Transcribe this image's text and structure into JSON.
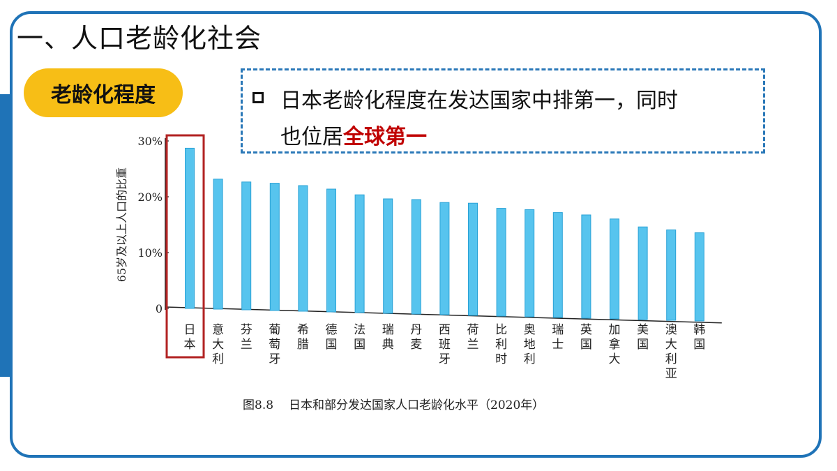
{
  "slide": {
    "title": "一、人口老龄化社会",
    "badge": "老龄化程度",
    "callout": {
      "line1": "日本老龄化程度在发达国家中排第一，同时",
      "line2_prefix": "也位居",
      "line2_highlight": "全球第一"
    },
    "caption": {
      "figure_number": "图8.8",
      "text": "日本和部分发达国家人口老龄化水平（2020年）"
    }
  },
  "colors": {
    "frame": "#1f73b7",
    "badge": "#f7be16",
    "highlight": "#c00000",
    "bar": "#57c4ee",
    "bar_edge": "#2aa2d6",
    "japan_box": "#b22222"
  },
  "chart_data": {
    "type": "bar",
    "ylabel": "65岁及以上人口的比重",
    "ylim": [
      0,
      30
    ],
    "yticks": [
      {
        "value": 0,
        "label": "0"
      },
      {
        "value": 10,
        "label": "10%"
      },
      {
        "value": 20,
        "label": "20%"
      },
      {
        "value": 30,
        "label": "30%"
      }
    ],
    "categories": [
      "日本",
      "意大利",
      "芬兰",
      "葡萄牙",
      "希腊",
      "德国",
      "法国",
      "瑞典",
      "丹麦",
      "西班牙",
      "荷兰",
      "比利时",
      "奥地利",
      "瑞士",
      "英国",
      "加拿大",
      "美国",
      "澳大利亚",
      "韩国"
    ],
    "values": [
      28.7,
      23.3,
      22.9,
      22.8,
      22.5,
      22.0,
      21.1,
      20.5,
      20.5,
      20.1,
      20.1,
      19.3,
      19.2,
      18.8,
      18.5,
      17.9,
      16.6,
      16.2,
      15.8
    ],
    "highlighted_category": "日本",
    "grid": false,
    "legend": "none"
  }
}
